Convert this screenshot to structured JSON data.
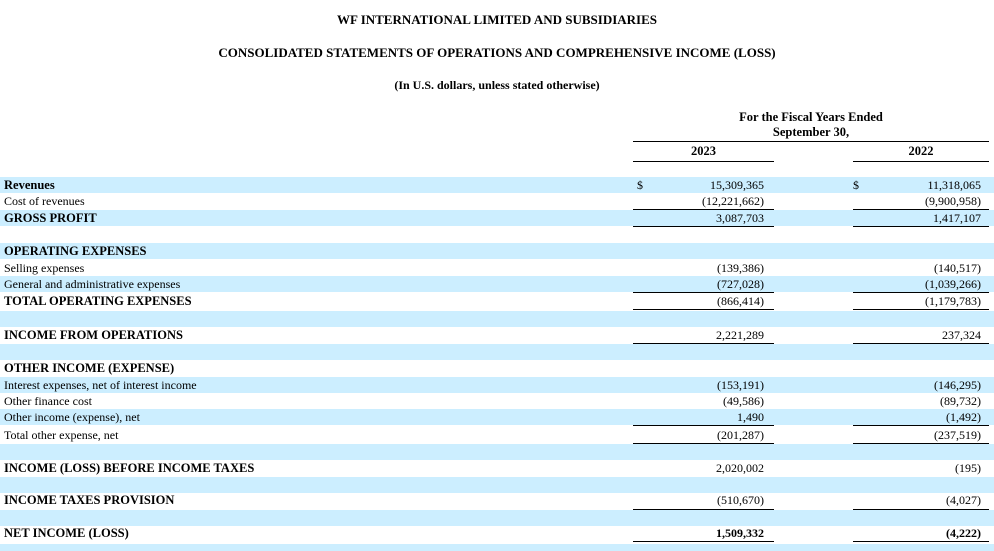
{
  "header": {
    "company": "WF INTERNATIONAL LIMITED AND SUBSIDIARIES",
    "statement": "CONSOLIDATED STATEMENTS OF OPERATIONS AND COMPREHENSIVE INCOME (LOSS)",
    "currency_note": "(In U.S. dollars, unless stated otherwise)"
  },
  "columns": {
    "period_line1": "For the Fiscal Years Ended",
    "period_line2": "September 30,",
    "year1": "2023",
    "year2": "2022",
    "currency_symbol": "$"
  },
  "rows": {
    "revenues": {
      "label": "Revenues",
      "v2023": "15,309,365",
      "v2022": "11,318,065"
    },
    "cost_of_revenues": {
      "label": "Cost of revenues",
      "v2023": "(12,221,662)",
      "v2022": "(9,900,958)"
    },
    "gross_profit": {
      "label": "GROSS PROFIT",
      "v2023": "3,087,703",
      "v2022": "1,417,107"
    },
    "operating_expenses": {
      "label": "OPERATING EXPENSES"
    },
    "selling_expenses": {
      "label": "Selling expenses",
      "v2023": "(139,386)",
      "v2022": "(140,517)"
    },
    "ga_expenses": {
      "label": "General and administrative expenses",
      "v2023": "(727,028)",
      "v2022": "(1,039,266)"
    },
    "total_operating_expenses": {
      "label": "TOTAL OPERATING EXPENSES",
      "v2023": "(866,414)",
      "v2022": "(1,179,783)"
    },
    "income_from_operations": {
      "label": "INCOME FROM OPERATIONS",
      "v2023": "2,221,289",
      "v2022": "237,324"
    },
    "other_income_expense": {
      "label": "OTHER INCOME (EXPENSE)"
    },
    "interest_expenses": {
      "label": "Interest expenses, net of interest income",
      "v2023": "(153,191)",
      "v2022": "(146,295)"
    },
    "other_finance_cost": {
      "label": "Other finance cost",
      "v2023": "(49,586)",
      "v2022": "(89,732)"
    },
    "other_income_net": {
      "label": "Other income (expense), net",
      "v2023": "1,490",
      "v2022": "(1,492)"
    },
    "total_other_expense": {
      "label": "Total other expense, net",
      "v2023": "(201,287)",
      "v2022": "(237,519)"
    },
    "income_before_taxes": {
      "label": "INCOME (LOSS) BEFORE INCOME TAXES",
      "v2023": "2,020,002",
      "v2022": "(195)"
    },
    "income_taxes_provision": {
      "label": "INCOME TAXES PROVISION",
      "v2023": "(510,670)",
      "v2022": "(4,027)"
    },
    "net_income": {
      "label": "NET INCOME (LOSS)",
      "v2023": "1,509,332",
      "v2022": "(4,222)"
    }
  }
}
